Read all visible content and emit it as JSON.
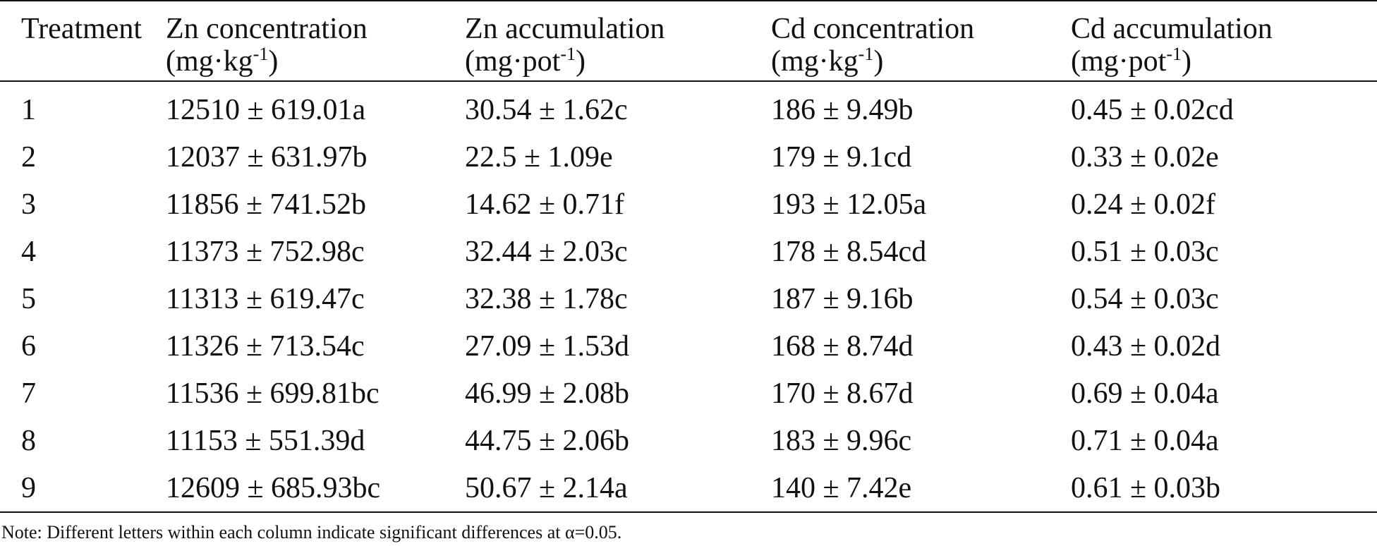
{
  "table": {
    "headers": [
      {
        "line1": "Treatment",
        "line2": "",
        "unit_pre": "",
        "unit_sup": "",
        "unit_post": ""
      },
      {
        "line1": "Zn concentration",
        "unit_pre": "(mg·kg",
        "unit_sup": "-1",
        "unit_post": ")"
      },
      {
        "line1": "Zn accumulation",
        "unit_pre": "(mg·pot",
        "unit_sup": "-1",
        "unit_post": ")"
      },
      {
        "line1": "Cd concentration",
        "unit_pre": "(mg·kg",
        "unit_sup": "-1",
        "unit_post": ")"
      },
      {
        "line1": "Cd accumulation",
        "unit_pre": "(mg·pot",
        "unit_sup": "-1",
        "unit_post": ")"
      }
    ],
    "rows": [
      [
        "1",
        "12510 ± 619.01a",
        "30.54 ± 1.62c",
        "186 ± 9.49b",
        "0.45 ± 0.02cd"
      ],
      [
        "2",
        "12037 ± 631.97b",
        "22.5 ± 1.09e",
        "179 ± 9.1cd",
        "0.33 ± 0.02e"
      ],
      [
        "3",
        "11856 ± 741.52b",
        "14.62 ± 0.71f",
        "193 ± 12.05a",
        "0.24 ± 0.02f"
      ],
      [
        "4",
        "11373 ± 752.98c",
        "32.44 ± 2.03c",
        "178 ± 8.54cd",
        "0.51 ± 0.03c"
      ],
      [
        "5",
        "11313 ± 619.47c",
        "32.38 ± 1.78c",
        "187 ± 9.16b",
        "0.54 ± 0.03c"
      ],
      [
        "6",
        "11326 ± 713.54c",
        "27.09 ± 1.53d",
        "168 ± 8.74d",
        "0.43 ± 0.02d"
      ],
      [
        "7",
        "11536 ± 699.81bc",
        "46.99 ± 2.08b",
        "170 ± 8.67d",
        "0.69 ± 0.04a"
      ],
      [
        "8",
        "11153 ± 551.39d",
        "44.75 ± 2.06b",
        "183 ± 9.96c",
        "0.71 ± 0.04a"
      ],
      [
        "9",
        "12609 ± 685.93bc",
        "50.67 ± 2.14a",
        "140 ± 7.42e",
        "0.61 ± 0.03b"
      ]
    ]
  },
  "note": "Note: Different letters within each column indicate significant differences at α=0.05."
}
